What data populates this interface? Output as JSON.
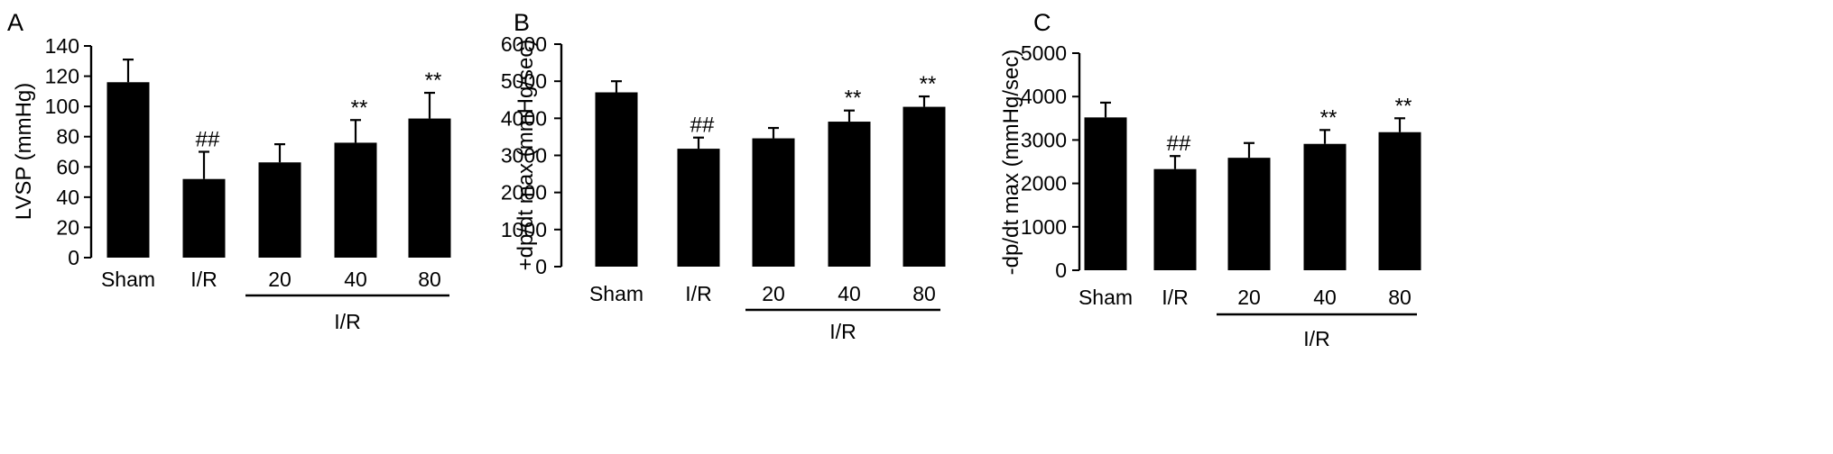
{
  "chart_data": [
    {
      "panel_label": "A",
      "type": "bar",
      "categories": [
        "Sham",
        "I/R",
        "20",
        "40",
        "80"
      ],
      "values": [
        116,
        52,
        63,
        76,
        92
      ],
      "errors": [
        15,
        18,
        12,
        15,
        17
      ],
      "significance": [
        "",
        "##",
        "",
        "**",
        "**"
      ],
      "group_label": "I/R",
      "ylabel": "LVSP (mmHg)",
      "ylim": [
        0,
        140
      ],
      "yticks": [
        "0",
        "20",
        "40",
        "60",
        "80",
        "100",
        "120",
        "140"
      ],
      "bar_color": "#000000"
    },
    {
      "panel_label": "B",
      "type": "bar",
      "categories": [
        "Sham",
        "I/R",
        "20",
        "40",
        "80"
      ],
      "values": [
        4700,
        3180,
        3460,
        3910,
        4310
      ],
      "errors": [
        300,
        300,
        280,
        300,
        280
      ],
      "significance": [
        "",
        "##",
        "",
        "**",
        "**"
      ],
      "group_label": "I/R",
      "ylabel": "+dp/dt max (mmHg/sec)",
      "ylim": [
        0,
        6000
      ],
      "yticks": [
        "0",
        "1000",
        "2000",
        "3000",
        "4000",
        "5000",
        "6000"
      ],
      "bar_color": "#000000"
    },
    {
      "panel_label": "C",
      "type": "bar",
      "categories": [
        "Sham",
        "I/R",
        "20",
        "40",
        "80"
      ],
      "values": [
        3520,
        2330,
        2590,
        2910,
        3180
      ],
      "errors": [
        340,
        300,
        340,
        320,
        320
      ],
      "significance": [
        "",
        "##",
        "",
        "**",
        "**"
      ],
      "group_label": "I/R",
      "ylabel": "-dp/dt max (mmHg/sec)",
      "ylim": [
        0,
        5000
      ],
      "yticks": [
        "0",
        "1000",
        "2000",
        "3000",
        "4000",
        "5000"
      ],
      "bar_color": "#000000"
    }
  ]
}
